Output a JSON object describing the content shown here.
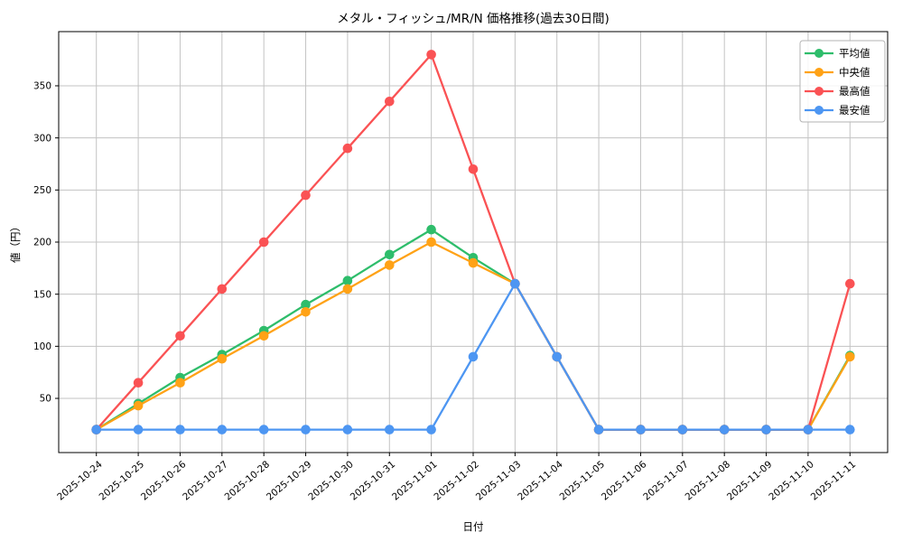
{
  "chart_data": {
    "type": "line",
    "title": "メタル・フィッシュ/MR/N 価格推移(過去30日間)",
    "xlabel": "日付",
    "ylabel": "値（円）",
    "grid": true,
    "legend_position": "top-right",
    "background_color": "#ffffff",
    "grid_color": "#c3c3c3",
    "spine_color": "#000000",
    "ylim": [
      -2,
      402
    ],
    "yticks": [
      50,
      100,
      150,
      200,
      250,
      300,
      350
    ],
    "categories": [
      "2025-10-24",
      "2025-10-25",
      "2025-10-26",
      "2025-10-27",
      "2025-10-28",
      "2025-10-29",
      "2025-10-30",
      "2025-10-31",
      "2025-11-01",
      "2025-11-02",
      "2025-11-03",
      "2025-11-04",
      "2025-11-05",
      "2025-11-06",
      "2025-11-07",
      "2025-11-08",
      "2025-11-09",
      "2025-11-10",
      "2025-11-11"
    ],
    "series": [
      {
        "name": "平均値",
        "slug": "average",
        "color": "#2ebd6b",
        "values": [
          20,
          45,
          70,
          92,
          115,
          140,
          163,
          188,
          212,
          185,
          160,
          90,
          20,
          20,
          20,
          20,
          20,
          20,
          91
        ]
      },
      {
        "name": "中央値",
        "slug": "median",
        "color": "#ffa216",
        "values": [
          20,
          43,
          65,
          88,
          110,
          133,
          155,
          178,
          200,
          180,
          160,
          90,
          20,
          20,
          20,
          20,
          20,
          20,
          90
        ]
      },
      {
        "name": "最高値",
        "slug": "max",
        "color": "#fa5254",
        "values": [
          20,
          65,
          110,
          155,
          200,
          245,
          290,
          335,
          380,
          270,
          160,
          90,
          20,
          20,
          20,
          20,
          20,
          20,
          160
        ]
      },
      {
        "name": "最安値",
        "slug": "min",
        "color": "#4d96f2",
        "values": [
          20,
          20,
          20,
          20,
          20,
          20,
          20,
          20,
          20,
          90,
          160,
          90,
          20,
          20,
          20,
          20,
          20,
          20,
          20
        ]
      }
    ]
  }
}
